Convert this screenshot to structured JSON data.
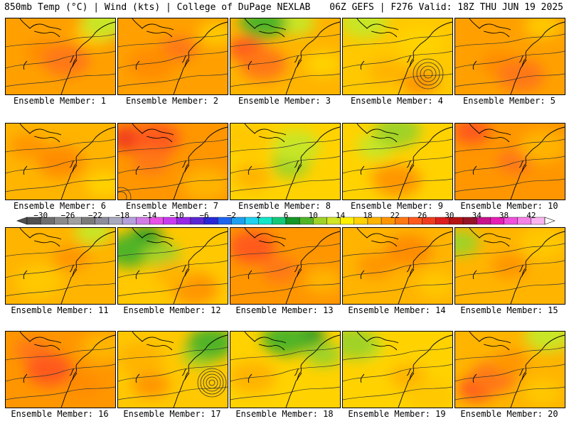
{
  "header": {
    "left": "850mb Temp (°C) | Wind (kts) | College of DuPage NEXLAB",
    "right": "06Z GEFS | F276 Valid: 18Z THU JUN 19 2025"
  },
  "colorbar": {
    "ticks": [
      "−30",
      "−26",
      "−22",
      "−18",
      "−14",
      "−10",
      "−6",
      "−2",
      "2",
      "6",
      "10",
      "14",
      "18",
      "22",
      "26",
      "30",
      "34",
      "38",
      "42"
    ],
    "tick_values": [
      -30,
      -26,
      -22,
      -18,
      -14,
      -10,
      -6,
      -2,
      2,
      6,
      10,
      14,
      18,
      22,
      26,
      30,
      34,
      38,
      42
    ],
    "bins": [
      {
        "min": -32,
        "color": "#505050"
      },
      {
        "min": -30,
        "color": "#6e6e6e"
      },
      {
        "min": -28,
        "color": "#8a8a8a"
      },
      {
        "min": -26,
        "color": "#a0a0a0"
      },
      {
        "min": -24,
        "color": "#7a7a7a"
      },
      {
        "min": -22,
        "color": "#8c8c9c"
      },
      {
        "min": -20,
        "color": "#a8a8c0"
      },
      {
        "min": -18,
        "color": "#b4a0dc"
      },
      {
        "min": -16,
        "color": "#d27ce8"
      },
      {
        "min": -14,
        "color": "#e850e8"
      },
      {
        "min": -12,
        "color": "#c83cf0"
      },
      {
        "min": -10,
        "color": "#9628e6"
      },
      {
        "min": -8,
        "color": "#5a28d2"
      },
      {
        "min": -6,
        "color": "#2828d8"
      },
      {
        "min": -4,
        "color": "#1e64f0"
      },
      {
        "min": -2,
        "color": "#1ea0f0"
      },
      {
        "min": 0,
        "color": "#1ed2f0"
      },
      {
        "min": 2,
        "color": "#14e6c8"
      },
      {
        "min": 4,
        "color": "#14c878"
      },
      {
        "min": 6,
        "color": "#149628"
      },
      {
        "min": 8,
        "color": "#50b428"
      },
      {
        "min": 10,
        "color": "#a0d228"
      },
      {
        "min": 12,
        "color": "#d2e628"
      },
      {
        "min": 14,
        "color": "#fff000"
      },
      {
        "min": 16,
        "color": "#ffd200"
      },
      {
        "min": 18,
        "color": "#ffb400"
      },
      {
        "min": 20,
        "color": "#ff9600"
      },
      {
        "min": 22,
        "color": "#ff7814"
      },
      {
        "min": 24,
        "color": "#ff5a1e"
      },
      {
        "min": 26,
        "color": "#f03c1e"
      },
      {
        "min": 28,
        "color": "#dc1e1e"
      },
      {
        "min": 30,
        "color": "#b41414"
      },
      {
        "min": 32,
        "color": "#961428"
      },
      {
        "min": 34,
        "color": "#c8148c"
      },
      {
        "min": 36,
        "color": "#e61eb4"
      },
      {
        "min": 38,
        "color": "#f050dc"
      },
      {
        "min": 40,
        "color": "#f582e6"
      },
      {
        "min": 42,
        "color": "#fab4f0"
      }
    ]
  },
  "label_prefix": "Ensemble Member: ",
  "members": [
    {
      "n": "1",
      "base": "#ffa000",
      "blobs": [
        {
          "c": "#ff8c00",
          "a": [
            0.35,
            0.45
          ]
        },
        {
          "c": "#ff7814",
          "a": [
            0.55,
            0.55
          ]
        },
        {
          "c": "#ffc800",
          "a": [
            0.8,
            0.2
          ]
        },
        {
          "c": "#c8e628",
          "a": [
            0.9,
            0.05
          ]
        }
      ]
    },
    {
      "n": "2",
      "base": "#ffa000",
      "blobs": [
        {
          "c": "#ff7814",
          "a": [
            0.55,
            0.4
          ]
        },
        {
          "c": "#ff8c00",
          "a": [
            0.3,
            0.6
          ]
        },
        {
          "c": "#ffc800",
          "a": [
            0.9,
            0.2
          ]
        }
      ]
    },
    {
      "n": "3",
      "base": "#ffb400",
      "blobs": [
        {
          "c": "#ff5a1e",
          "a": [
            0.15,
            0.4
          ]
        },
        {
          "c": "#ff7814",
          "a": [
            0.3,
            0.6
          ]
        },
        {
          "c": "#c8e628",
          "a": [
            0.6,
            0.05
          ]
        },
        {
          "c": "#50b428",
          "a": [
            0.3,
            0.05
          ]
        },
        {
          "c": "#ffd200",
          "a": [
            0.85,
            0.6
          ]
        }
      ]
    },
    {
      "n": "4",
      "base": "#ffc800",
      "blobs": [
        {
          "c": "#ffb400",
          "a": [
            0.4,
            0.7
          ]
        },
        {
          "c": "#ffd200",
          "a": [
            0.7,
            0.3
          ]
        },
        {
          "c": "#ff9600",
          "a": [
            0.7,
            0.85
          ]
        },
        {
          "c": "#c8e628",
          "a": [
            0.2,
            0.05
          ]
        }
      ]
    },
    {
      "n": "5",
      "base": "#ffa000",
      "blobs": [
        {
          "c": "#ff8c00",
          "a": [
            0.4,
            0.6
          ]
        },
        {
          "c": "#ff7814",
          "a": [
            0.6,
            0.75
          ]
        },
        {
          "c": "#ffc800",
          "a": [
            0.8,
            0.1
          ]
        }
      ]
    },
    {
      "n": "6",
      "base": "#ffb400",
      "blobs": [
        {
          "c": "#ff9600",
          "a": [
            0.2,
            0.3
          ]
        },
        {
          "c": "#ff8c00",
          "a": [
            0.5,
            0.5
          ]
        },
        {
          "c": "#ffd200",
          "a": [
            0.9,
            0.8
          ]
        }
      ]
    },
    {
      "n": "7",
      "base": "#ff9600",
      "blobs": [
        {
          "c": "#f03c1e",
          "a": [
            0.1,
            0.2
          ]
        },
        {
          "c": "#ff5a1e",
          "a": [
            0.35,
            0.2
          ]
        },
        {
          "c": "#ff7814",
          "a": [
            0.3,
            0.5
          ]
        },
        {
          "c": "#ffb400",
          "a": [
            0.8,
            0.8
          ]
        }
      ]
    },
    {
      "n": "8",
      "base": "#ffd200",
      "blobs": [
        {
          "c": "#a0d228",
          "a": [
            0.55,
            0.55
          ]
        },
        {
          "c": "#c8e628",
          "a": [
            0.6,
            0.3
          ]
        },
        {
          "c": "#ffb400",
          "a": [
            0.2,
            0.7
          ]
        },
        {
          "c": "#ffc800",
          "a": [
            0.15,
            0.2
          ]
        }
      ]
    },
    {
      "n": "9",
      "base": "#ffd200",
      "blobs": [
        {
          "c": "#c8e628",
          "a": [
            0.3,
            0.3
          ]
        },
        {
          "c": "#a0d228",
          "a": [
            0.5,
            0.1
          ]
        },
        {
          "c": "#ffb400",
          "a": [
            0.4,
            0.7
          ]
        },
        {
          "c": "#ff9600",
          "a": [
            0.5,
            0.75
          ]
        }
      ]
    },
    {
      "n": "10",
      "base": "#ff9600",
      "blobs": [
        {
          "c": "#ff7814",
          "a": [
            0.55,
            0.5
          ]
        },
        {
          "c": "#ffb400",
          "a": [
            0.8,
            0.3
          ]
        },
        {
          "c": "#ff5a1e",
          "a": [
            0.15,
            0.1
          ]
        }
      ]
    },
    {
      "n": "11",
      "base": "#ffb400",
      "blobs": [
        {
          "c": "#ff9600",
          "a": [
            0.6,
            0.4
          ]
        },
        {
          "c": "#ffc800",
          "a": [
            0.3,
            0.7
          ]
        },
        {
          "c": "#c8e628",
          "a": [
            0.8,
            0.05
          ]
        }
      ]
    },
    {
      "n": "12",
      "base": "#ffc800",
      "blobs": [
        {
          "c": "#149628",
          "a": [
            0.25,
            0.15
          ]
        },
        {
          "c": "#50b428",
          "a": [
            0.1,
            0.3
          ]
        },
        {
          "c": "#a0d228",
          "a": [
            0.4,
            0.35
          ]
        },
        {
          "c": "#ff9600",
          "a": [
            0.7,
            0.8
          ]
        },
        {
          "c": "#ffb400",
          "a": [
            0.5,
            0.6
          ]
        }
      ]
    },
    {
      "n": "13",
      "base": "#ff9600",
      "blobs": [
        {
          "c": "#ff7814",
          "a": [
            0.45,
            0.55
          ]
        },
        {
          "c": "#ff5a1e",
          "a": [
            0.2,
            0.25
          ]
        },
        {
          "c": "#ffb400",
          "a": [
            0.85,
            0.7
          ]
        }
      ]
    },
    {
      "n": "14",
      "base": "#ffb400",
      "blobs": [
        {
          "c": "#ff9600",
          "a": [
            0.3,
            0.5
          ]
        },
        {
          "c": "#ff8c00",
          "a": [
            0.6,
            0.3
          ]
        },
        {
          "c": "#ffc800",
          "a": [
            0.85,
            0.75
          ]
        }
      ]
    },
    {
      "n": "15",
      "base": "#ffb400",
      "blobs": [
        {
          "c": "#ff9600",
          "a": [
            0.5,
            0.5
          ]
        },
        {
          "c": "#ffc800",
          "a": [
            0.8,
            0.2
          ]
        },
        {
          "c": "#a0d228",
          "a": [
            0.05,
            0.2
          ]
        }
      ]
    },
    {
      "n": "16",
      "base": "#ff9600",
      "blobs": [
        {
          "c": "#ff7814",
          "a": [
            0.25,
            0.25
          ]
        },
        {
          "c": "#ff5a1e",
          "a": [
            0.4,
            0.5
          ]
        },
        {
          "c": "#ff8c00",
          "a": [
            0.7,
            0.7
          ]
        },
        {
          "c": "#ffb400",
          "a": [
            0.9,
            0.2
          ]
        }
      ]
    },
    {
      "n": "17",
      "base": "#ffc800",
      "blobs": [
        {
          "c": "#a0d228",
          "a": [
            0.75,
            0.3
          ]
        },
        {
          "c": "#50b428",
          "a": [
            0.85,
            0.15
          ]
        },
        {
          "c": "#ff9600",
          "a": [
            0.3,
            0.7
          ]
        },
        {
          "c": "#ffb400",
          "a": [
            0.2,
            0.35
          ]
        }
      ]
    },
    {
      "n": "18",
      "base": "#ffd200",
      "blobs": [
        {
          "c": "#149628",
          "a": [
            0.7,
            0.08
          ]
        },
        {
          "c": "#50b428",
          "a": [
            0.5,
            0.1
          ]
        },
        {
          "c": "#a0d228",
          "a": [
            0.85,
            0.3
          ]
        },
        {
          "c": "#ffb400",
          "a": [
            0.2,
            0.6
          ]
        }
      ]
    },
    {
      "n": "19",
      "base": "#ffd200",
      "blobs": [
        {
          "c": "#c8e628",
          "a": [
            0.2,
            0.2
          ]
        },
        {
          "c": "#a0d228",
          "a": [
            0.1,
            0.15
          ]
        },
        {
          "c": "#ffb400",
          "a": [
            0.6,
            0.6
          ]
        },
        {
          "c": "#ffc800",
          "a": [
            0.8,
            0.85
          ]
        }
      ]
    },
    {
      "n": "20",
      "base": "#ffb400",
      "blobs": [
        {
          "c": "#ff5a1e",
          "a": [
            0.2,
            0.75
          ]
        },
        {
          "c": "#ff7814",
          "a": [
            0.35,
            0.6
          ]
        },
        {
          "c": "#ff9600",
          "a": [
            0.5,
            0.4
          ]
        },
        {
          "c": "#c8e628",
          "a": [
            0.85,
            0.05
          ]
        },
        {
          "c": "#ffc800",
          "a": [
            0.8,
            0.8
          ]
        }
      ]
    }
  ]
}
